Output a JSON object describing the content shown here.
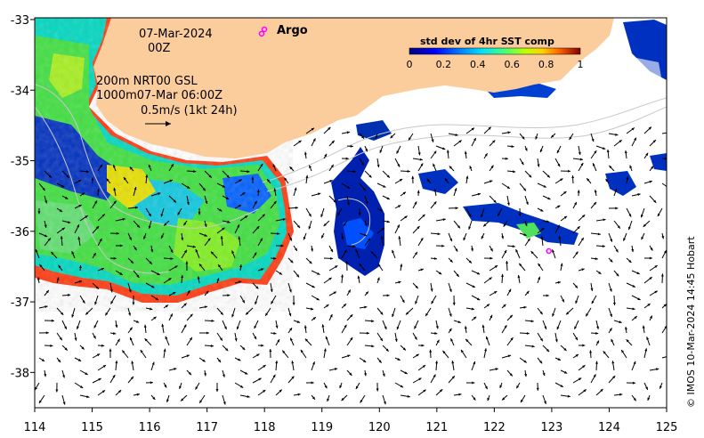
{
  "map": {
    "date": "07-Mar-2024",
    "time": "00Z",
    "contour_line1": "200m  NRT00 GSL",
    "contour_line2": "1000m07-Mar 06:00Z",
    "vector_scale": "0.5m/s (1kt 24h)",
    "argo_label": "Argo",
    "credit": "© IMOS 10-Mar-2024 14:45 Hobart",
    "lon_ticks": [
      "114",
      "115",
      "116",
      "117",
      "118",
      "119",
      "120",
      "121",
      "122",
      "123",
      "124",
      "125"
    ],
    "lat_ticks": [
      "-33",
      "-34",
      "-35",
      "-36",
      "-37",
      "-38"
    ],
    "colorbar": {
      "title": "std dev of 4hr SST comp",
      "ticks": [
        "0",
        "0.2",
        "0.4",
        "0.6",
        "0.8",
        "1"
      ],
      "range": [
        0,
        1
      ]
    },
    "colors": {
      "land": "#fbcc9c",
      "argo_marker": "#ff00ff",
      "contour": "#c8c8c8"
    },
    "argo_floats": [
      {
        "lon": 117.95,
        "lat": -33.2
      },
      {
        "lon": 122.95,
        "lat": -36.28
      }
    ]
  }
}
